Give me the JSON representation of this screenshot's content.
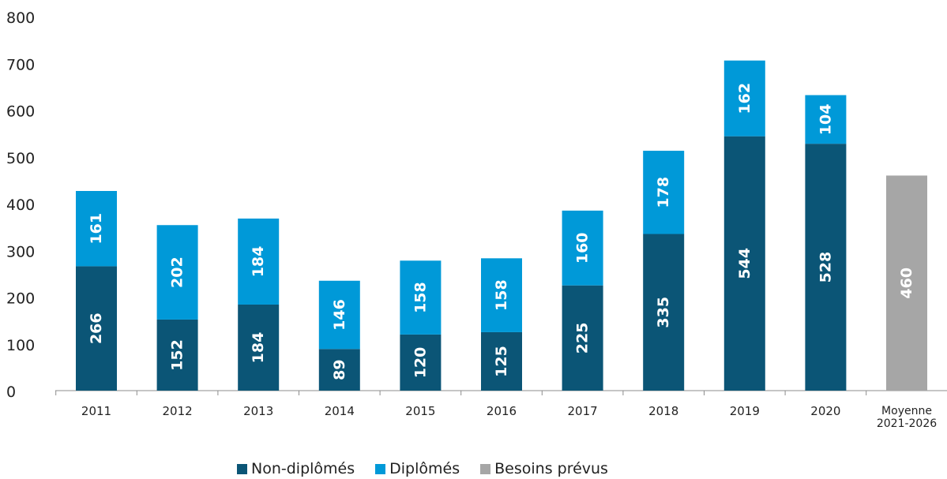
{
  "chart_data": {
    "type": "bar",
    "stacked": true,
    "title": "",
    "xlabel": "",
    "ylabel": "",
    "ylim": [
      0,
      800
    ],
    "yticks": [
      0,
      100,
      200,
      300,
      400,
      500,
      600,
      700,
      800
    ],
    "grid": false,
    "legend_position": "bottom",
    "categories": [
      "2011",
      "2012",
      "2013",
      "2014",
      "2015",
      "2016",
      "2017",
      "2018",
      "2019",
      "2020",
      "Moyenne 2021-2026"
    ],
    "category_lines": [
      [
        "2011"
      ],
      [
        "2012"
      ],
      [
        "2013"
      ],
      [
        "2014"
      ],
      [
        "2015"
      ],
      [
        "2016"
      ],
      [
        "2017"
      ],
      [
        "2018"
      ],
      [
        "2019"
      ],
      [
        "2020"
      ],
      [
        "Moyenne",
        "2021-2026"
      ]
    ],
    "series": [
      {
        "name": "Non-diplômés",
        "color": "#0b5576",
        "values": [
          266,
          152,
          184,
          89,
          120,
          125,
          225,
          335,
          544,
          528,
          null
        ]
      },
      {
        "name": "Diplômés",
        "color": "#0099d8",
        "values": [
          161,
          202,
          184,
          146,
          158,
          158,
          160,
          178,
          162,
          104,
          null
        ]
      },
      {
        "name": "Besoins prévus",
        "color": "#a6a6a6",
        "values": [
          null,
          null,
          null,
          null,
          null,
          null,
          null,
          null,
          null,
          null,
          460
        ]
      }
    ]
  }
}
